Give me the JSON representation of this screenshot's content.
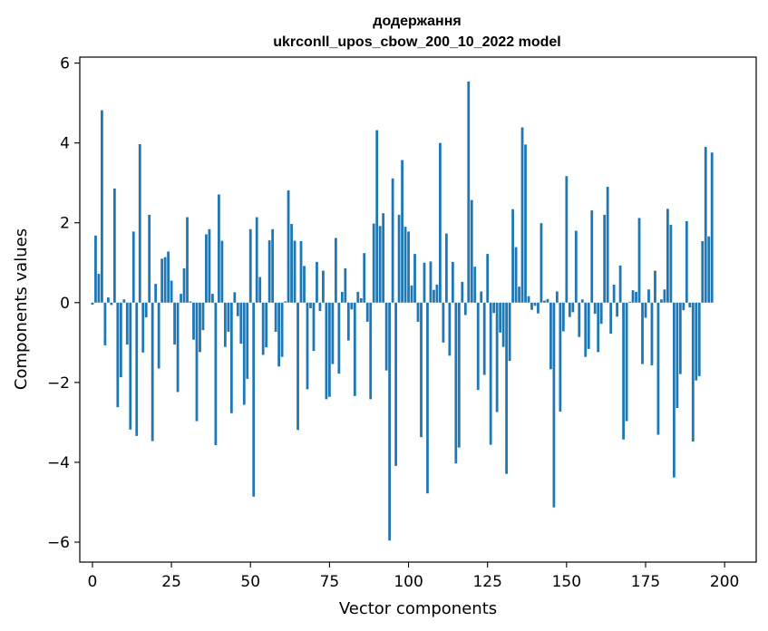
{
  "chart_data": {
    "type": "bar",
    "title_line1": "додержання",
    "title_line2": "ukrconll_upos_cbow_200_10_2022 model",
    "xlabel": "Vector components",
    "ylabel": "Components values",
    "xlim": [
      -4,
      210
    ],
    "ylim": [
      -6.5,
      6.15
    ],
    "xticks": [
      0,
      25,
      50,
      75,
      100,
      125,
      150,
      175,
      200
    ],
    "xtick_labels": [
      "0",
      "25",
      "50",
      "75",
      "100",
      "125",
      "150",
      "175",
      "200"
    ],
    "yticks": [
      -6,
      -4,
      -2,
      0,
      2,
      4,
      6
    ],
    "ytick_labels": [
      "−6",
      "−4",
      "−2",
      "0",
      "2",
      "4",
      "6"
    ],
    "bar_color": "#1f77b4",
    "grid": false,
    "values": [
      -0.05,
      1.68,
      0.72,
      4.82,
      -1.07,
      0.13,
      -0.06,
      2.86,
      -2.62,
      -1.87,
      0.08,
      -1.05,
      -3.18,
      1.78,
      -3.34,
      3.97,
      -1.25,
      -0.37,
      2.2,
      -3.47,
      0.47,
      -1.65,
      1.1,
      1.14,
      1.28,
      0.55,
      -1.05,
      -2.24,
      0.22,
      0.86,
      2.14,
      0.03,
      -0.93,
      -2.97,
      -1.24,
      -0.69,
      1.71,
      1.84,
      0.22,
      -3.57,
      2.71,
      1.55,
      -1.11,
      -0.73,
      -2.77,
      0.26,
      -0.34,
      -1.03,
      -2.56,
      -1.91,
      1.84,
      -4.86,
      2.14,
      0.64,
      -1.31,
      -1.12,
      1.56,
      1.84,
      -0.73,
      -1.6,
      -1.36,
      0.03,
      2.81,
      1.97,
      1.55,
      -3.19,
      1.54,
      0.92,
      -2.17,
      -0.14,
      -1.21,
      1.02,
      -0.21,
      0.8,
      -2.42,
      -2.36,
      -1.54,
      1.62,
      -1.78,
      0.27,
      0.86,
      -0.95,
      -0.17,
      -2.34,
      0.27,
      0.11,
      1.24,
      -0.48,
      -2.42,
      1.98,
      4.32,
      1.92,
      2.24,
      -1.7,
      -5.96,
      3.11,
      -4.09,
      2.2,
      3.57,
      1.9,
      1.78,
      0.43,
      1.22,
      -0.48,
      -3.37,
      1.0,
      -4.78,
      1.03,
      0.32,
      0.45,
      4.0,
      -1.0,
      1.73,
      -1.33,
      1.02,
      -4.03,
      -3.63,
      0.52,
      -0.31,
      5.54,
      2.57,
      0.9,
      -2.19,
      0.28,
      -1.81,
      1.22,
      -3.56,
      -0.26,
      -2.74,
      -0.75,
      -1.11,
      -4.29,
      -1.46,
      2.34,
      1.39,
      0.4,
      4.39,
      3.96,
      0.16,
      -0.18,
      -0.08,
      -0.27,
      1.99,
      0.05,
      0.09,
      -1.67,
      -5.13,
      0.28,
      -2.73,
      -0.72,
      3.17,
      -0.36,
      -0.24,
      1.8,
      -0.86,
      0.08,
      -1.36,
      -1.16,
      2.31,
      -0.28,
      -1.24,
      -0.53,
      2.2,
      2.9,
      -0.78,
      0.45,
      -0.35,
      0.93,
      -3.43,
      -2.97,
      0.02,
      0.31,
      0.27,
      2.12,
      -1.54,
      -0.38,
      0.33,
      -1.57,
      0.8,
      -3.31,
      0.08,
      0.33,
      2.35,
      1.95,
      -4.38,
      -2.64,
      -1.79,
      -0.19,
      2.04,
      -0.12,
      -3.48,
      -1.95,
      -1.84,
      1.54,
      3.9,
      1.66,
      3.76
    ]
  }
}
